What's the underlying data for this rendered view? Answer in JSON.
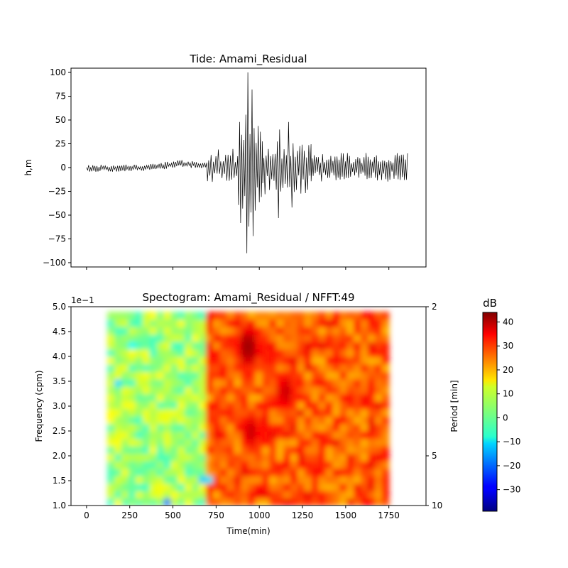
{
  "chart_data": [
    {
      "type": "line",
      "title": "Tide: Amami_Residual",
      "xlabel": "",
      "ylabel": "h,m",
      "ylim": [
        -100,
        100
      ],
      "xlim": [
        -90,
        1965
      ],
      "yticks": [
        100,
        75,
        50,
        25,
        0,
        -25,
        -50,
        -75,
        -100
      ],
      "yticklabels": [
        "100",
        "75",
        "50",
        "25",
        "0",
        "−25",
        "−50",
        "−75",
        "−100"
      ],
      "series_color": "#000000",
      "segments": [
        {
          "t": [
            0,
            700
          ],
          "amp": 3.5,
          "period": 12,
          "trend": [
            [
              0,
              -1
            ],
            [
              350,
              0
            ],
            [
              550,
              4
            ],
            [
              700,
              2
            ]
          ]
        },
        {
          "t": [
            700,
            880
          ],
          "amp": 18,
          "period": 14
        },
        {
          "t": [
            880,
            1020
          ],
          "amp": 55,
          "period": 12
        },
        {
          "t": [
            1020,
            1300
          ],
          "amp": 26,
          "period": 13
        },
        {
          "t": [
            1300,
            1860
          ],
          "amp": 14,
          "period": 12
        }
      ],
      "extremes": [
        {
          "x": 927,
          "y": -90
        },
        {
          "x": 932,
          "y": 78
        },
        {
          "x": 940,
          "y": 100
        },
        {
          "x": 946,
          "y": -62
        },
        {
          "x": 955,
          "y": 82
        },
        {
          "x": 963,
          "y": -72
        },
        {
          "x": 1108,
          "y": -53
        },
        {
          "x": 1165,
          "y": 48
        },
        {
          "x": 1120,
          "y": 40
        },
        {
          "x": 1185,
          "y": -42
        }
      ]
    },
    {
      "type": "heatmap",
      "title": "Spectogram: Amami_Residual / NFFT:49",
      "xlabel": "Time(min)",
      "ylabel": "Frequency (cpm)",
      "y2label": "Period [min]",
      "xlim": [
        -90,
        1965
      ],
      "ylim": [
        1.0,
        5.0
      ],
      "xticks": [
        0,
        250,
        500,
        750,
        1000,
        1250,
        1500,
        1750
      ],
      "yticks": [
        1.0,
        1.5,
        2.0,
        2.5,
        3.0,
        3.5,
        4.0,
        4.5,
        5.0
      ],
      "yticklabels": [
        "1.0",
        "1.5",
        "2.0",
        "2.5",
        "3.0",
        "3.5",
        "4.0",
        "4.5",
        "5.0"
      ],
      "y_multiplier": "1e−1",
      "period_ticks": [
        {
          "freq": 5.0,
          "label": "2"
        },
        {
          "freq": 2.0,
          "label": "5"
        },
        {
          "freq": 1.0,
          "label": "10"
        }
      ],
      "extent": {
        "t": [
          120,
          1750
        ],
        "f": [
          1.0,
          4.9
        ]
      },
      "colorbar": {
        "label": "dB",
        "min": -39,
        "max": 44,
        "ticks": [
          40,
          30,
          20,
          10,
          0,
          -10,
          -20,
          -30
        ],
        "ticklabels": [
          "40",
          "30",
          "20",
          "10",
          "0",
          "−10",
          "−20",
          "−30"
        ],
        "colormap": "jet"
      },
      "regions": [
        {
          "t": [
            120,
            700
          ],
          "level_db": 5
        },
        {
          "t": [
            700,
            1750
          ],
          "level_db": 27
        }
      ],
      "hotspots": [
        {
          "t": 935,
          "f": 4.2,
          "db": 42
        },
        {
          "t": 950,
          "f": 2.5,
          "db": 38
        },
        {
          "t": 1150,
          "f": 3.3,
          "db": 38
        },
        {
          "t": 1060,
          "f": 4.0,
          "db": 33
        }
      ],
      "coldspots": [
        {
          "t": 690,
          "f": 1.5,
          "db": -38
        },
        {
          "t": 480,
          "f": 1.1,
          "db": -32
        },
        {
          "t": 450,
          "f": 1.9,
          "db": -24
        },
        {
          "t": 175,
          "f": 3.5,
          "db": -14
        },
        {
          "t": 270,
          "f": 4.2,
          "db": -12
        }
      ]
    }
  ]
}
